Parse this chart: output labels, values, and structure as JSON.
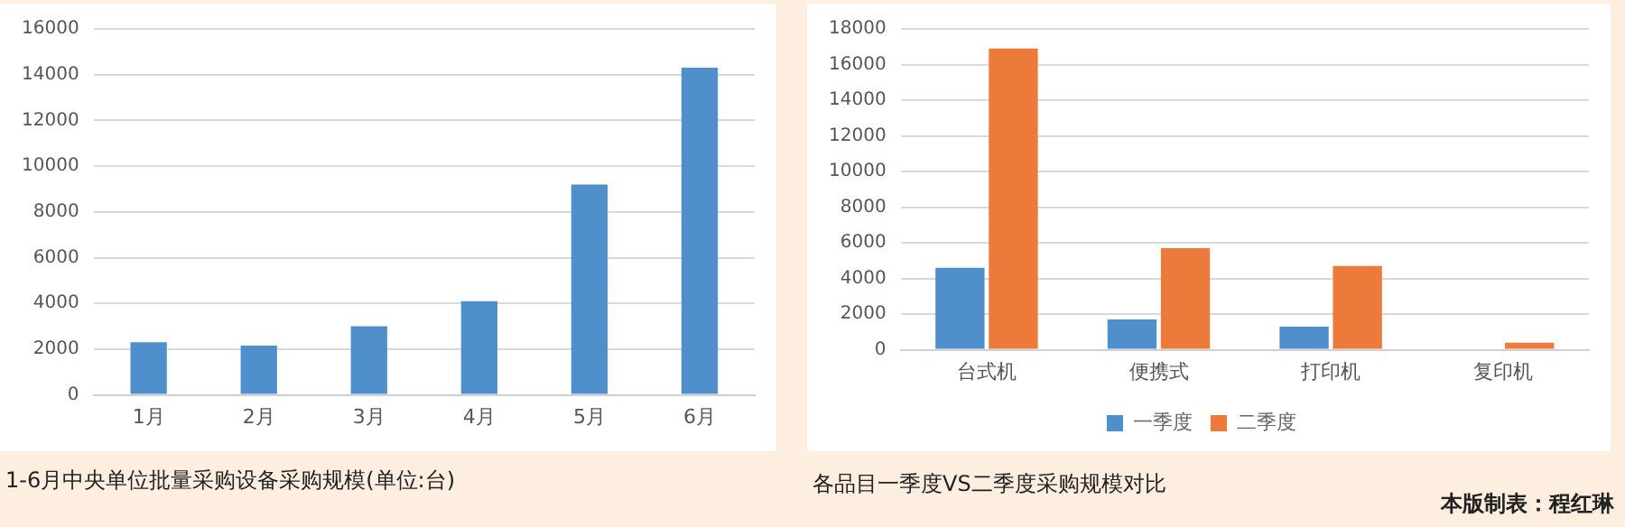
{
  "chart_data": [
    {
      "type": "bar",
      "title": "1-6月中央单位批量采购设备采购规模(单位:台)",
      "categories": [
        "1月",
        "2月",
        "3月",
        "4月",
        "5月",
        "6月"
      ],
      "values": [
        2300,
        2150,
        3000,
        4100,
        9200,
        14300
      ],
      "color": "#4e8fcc",
      "ylim": [
        0,
        16000
      ],
      "yticks": [
        0,
        2000,
        4000,
        6000,
        8000,
        10000,
        12000,
        14000,
        16000
      ],
      "grid": "y",
      "legend": false
    },
    {
      "type": "bar",
      "title": "各品目一季度VS二季度采购规模对比",
      "categories": [
        "台式机",
        "便携式",
        "打印机",
        "复印机"
      ],
      "series": [
        {
          "name": "一季度",
          "color": "#4e8fcc",
          "values": [
            4600,
            1700,
            1300,
            null
          ]
        },
        {
          "name": "二季度",
          "color": "#ec7a3a",
          "values": [
            16900,
            5700,
            4700,
            400
          ]
        }
      ],
      "ylim": [
        0,
        18000
      ],
      "yticks": [
        0,
        2000,
        4000,
        6000,
        8000,
        10000,
        12000,
        14000,
        16000,
        18000
      ],
      "grid": "y",
      "legend": "bottom",
      "annotations": [
        "本版制表：程红琳"
      ]
    }
  ]
}
